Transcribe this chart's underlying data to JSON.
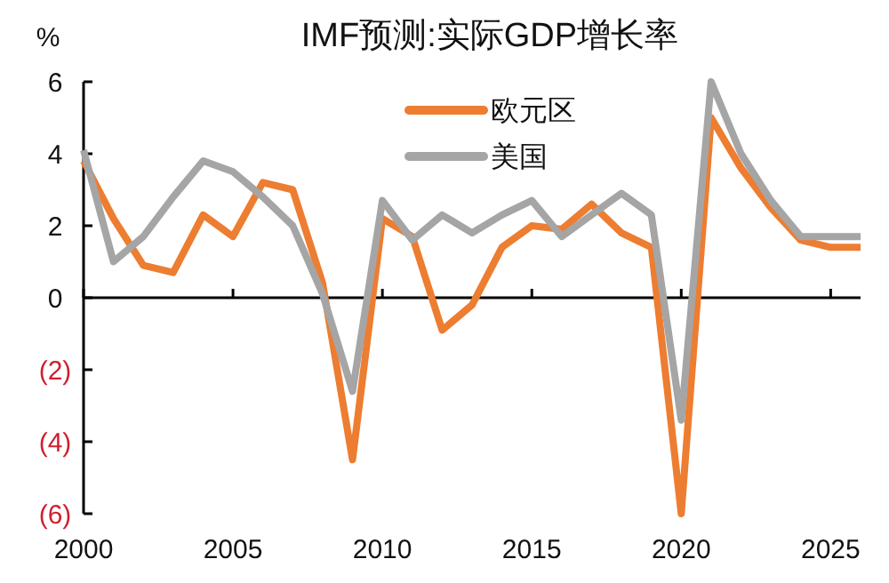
{
  "chart_data": {
    "type": "line",
    "title": "IMF预测:实际GDP增长率",
    "ylabel": "%",
    "x": [
      2000,
      2001,
      2002,
      2003,
      2004,
      2005,
      2006,
      2007,
      2008,
      2009,
      2010,
      2011,
      2012,
      2013,
      2014,
      2015,
      2016,
      2017,
      2018,
      2019,
      2020,
      2021,
      2022,
      2023,
      2024,
      2025,
      2026
    ],
    "series": [
      {
        "name": "欧元区",
        "color": "#ed7d31",
        "values": [
          3.8,
          2.2,
          0.9,
          0.7,
          2.3,
          1.7,
          3.2,
          3.0,
          0.4,
          -4.5,
          2.2,
          1.7,
          -0.9,
          -0.2,
          1.4,
          2.0,
          1.9,
          2.6,
          1.8,
          1.4,
          -6.0,
          5.0,
          3.6,
          2.5,
          1.6,
          1.4,
          1.4
        ]
      },
      {
        "name": "美国",
        "color": "#a5a5a5",
        "values": [
          4.1,
          1.0,
          1.7,
          2.8,
          3.8,
          3.5,
          2.8,
          2.0,
          0.1,
          -2.6,
          2.7,
          1.6,
          2.3,
          1.8,
          2.3,
          2.7,
          1.7,
          2.3,
          2.9,
          2.3,
          -3.4,
          6.0,
          4.0,
          2.7,
          1.7,
          1.7,
          1.7
        ]
      }
    ],
    "xlim": [
      2000,
      2026
    ],
    "xticks": [
      2000,
      2005,
      2010,
      2015,
      2020,
      2025
    ],
    "ylim": [
      -6,
      6
    ],
    "yticks": [
      {
        "value": -6,
        "label": "(6)"
      },
      {
        "value": -4,
        "label": "(4)"
      },
      {
        "value": -2,
        "label": "(2)"
      },
      0,
      2,
      4,
      6
    ],
    "legend": "top",
    "marker": "none",
    "line_style": "solid"
  }
}
